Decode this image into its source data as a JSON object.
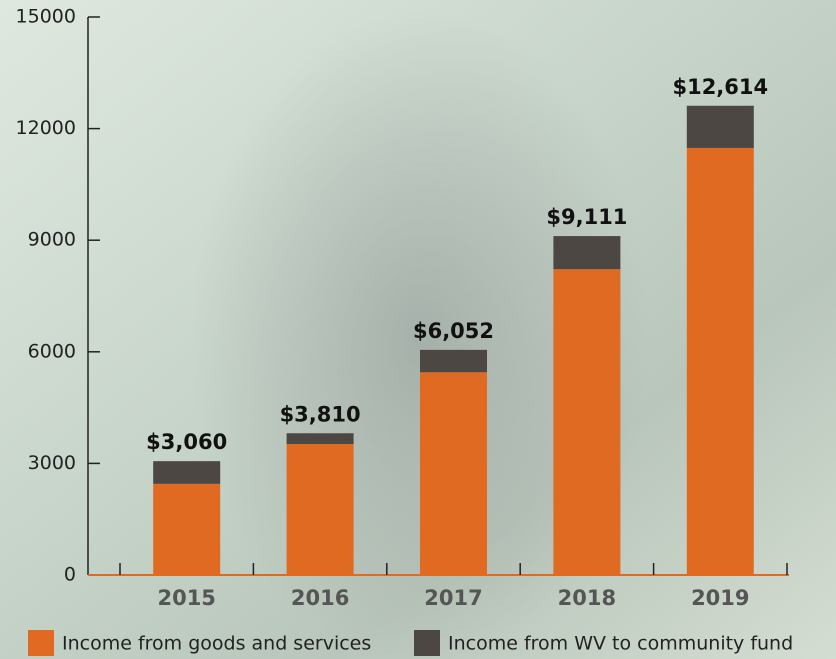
{
  "chart_data": {
    "type": "stacked_bar",
    "categories": [
      "2015",
      "2016",
      "2017",
      "2018",
      "2019"
    ],
    "series": [
      {
        "name": "Income from goods and services",
        "color": "#e06a22",
        "values": [
          2450,
          3520,
          5450,
          8220,
          11480
        ]
      },
      {
        "name": "Income from WV to community fund",
        "color": "#4d4744",
        "values": [
          610,
          290,
          602,
          891,
          1134
        ]
      }
    ],
    "totals": [
      3060,
      3810,
      6052,
      9111,
      12614
    ],
    "total_labels": [
      "$3,060",
      "$3,810",
      "$6,052",
      "$9,111",
      "$12,614"
    ],
    "ylim": [
      0,
      15000
    ],
    "yticks": [
      0,
      3000,
      6000,
      9000,
      12000,
      15000
    ],
    "legend": "bottom"
  }
}
